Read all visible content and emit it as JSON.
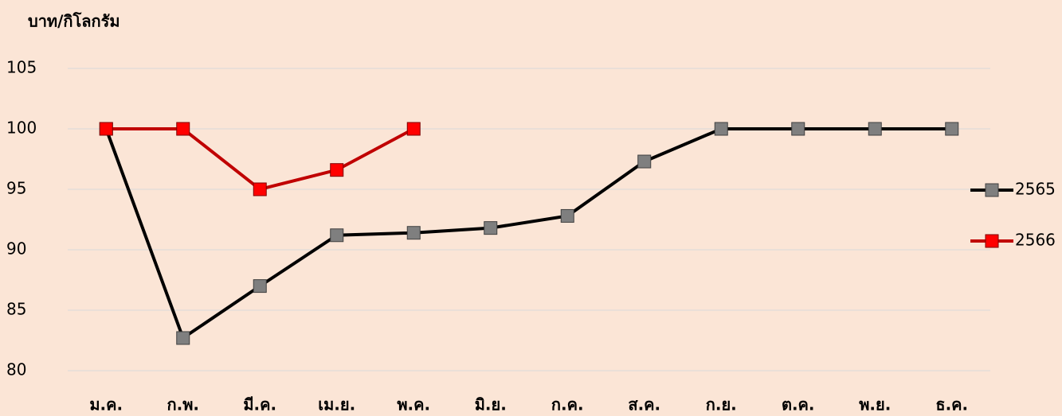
{
  "chart_data": {
    "type": "line",
    "y_label": "บาท/กิโลกรัม",
    "categories": [
      "ม.ค.",
      "ก.พ.",
      "มี.ค.",
      "เม.ย.",
      "พ.ค.",
      "มิ.ย.",
      "ก.ค.",
      "ส.ค.",
      "ก.ย.",
      "ต.ค.",
      "พ.ย.",
      "ธ.ค."
    ],
    "series": [
      {
        "name": "2565",
        "color": "#000000",
        "marker_color": "#7f7f7f",
        "values": [
          100,
          82.7,
          87,
          91.2,
          91.4,
          91.8,
          92.8,
          97.3,
          100,
          100,
          100,
          100
        ]
      },
      {
        "name": "2566",
        "color": "#c00000",
        "marker_color": "#ff0000",
        "values": [
          100,
          100,
          95,
          96.6,
          100,
          null,
          null,
          null,
          null,
          null,
          null,
          null
        ]
      }
    ],
    "ylim": [
      80,
      105
    ],
    "yticks": [
      80,
      85,
      90,
      95,
      100,
      105
    ],
    "grid": true,
    "legend": "right"
  }
}
